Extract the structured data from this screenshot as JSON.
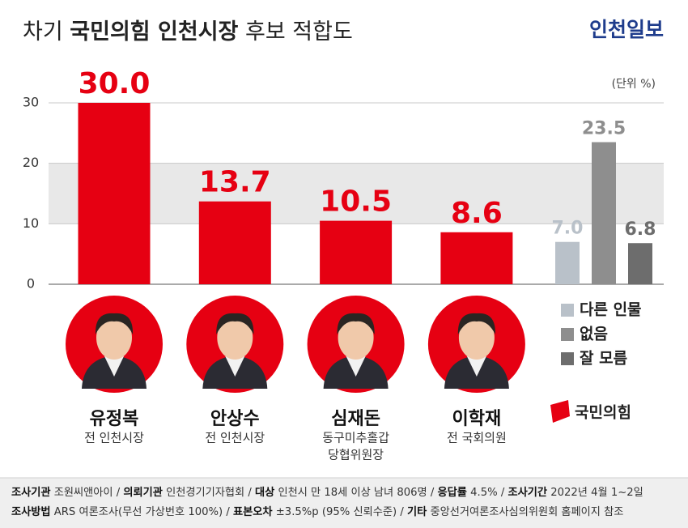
{
  "chart_data": {
    "type": "bar",
    "title": [
      "차기",
      "국민의힘 인천시장",
      "후보 적합도"
    ],
    "logo": "인천일보",
    "unit": "(단위 %)",
    "categories": [
      "유정복",
      "안상수",
      "심재돈",
      "이학재",
      "다른 인물",
      "없음",
      "잘 모름"
    ],
    "values": [
      30.0,
      13.7,
      10.5,
      8.6,
      7.0,
      23.5,
      6.8
    ],
    "value_labels": [
      "30.0",
      "13.7",
      "10.5",
      "8.6",
      "7.0",
      "23.5",
      "6.8"
    ],
    "colors": [
      "#e60012",
      "#e60012",
      "#e60012",
      "#e60012",
      "#b9c1c9",
      "#8e8e8e",
      "#6d6d6d"
    ],
    "descriptions": [
      [
        "전 인천시장"
      ],
      [
        "전 인천시장"
      ],
      [
        "동구미추홀갑",
        "당협위원장"
      ],
      [
        "전 국회의원"
      ]
    ],
    "party": "국민의힘",
    "ylim": [
      0,
      30
    ],
    "yticks": [
      0,
      10,
      20,
      30
    ],
    "grid": true,
    "notes": [
      [
        {
          "label": "조사기관",
          "text": "조원씨앤아이"
        },
        {
          "label": "의뢰기관",
          "text": "인천경기기자협회"
        },
        {
          "label": "대상",
          "text": "인천시 만 18세 이상 남녀 806명"
        },
        {
          "label": "응답률",
          "text": "4.5%"
        },
        {
          "label": "조사기간",
          "text": "2022년 4월 1~2일"
        }
      ],
      [
        {
          "label": "조사방법",
          "text": "ARS 여론조사(무선 가상번호 100%)"
        },
        {
          "label": "표본오차",
          "text": "±3.5%p (95% 신뢰수준)"
        },
        {
          "label": "기타",
          "text": "중앙선거여론조사심의위원회 홈페이지 참조"
        }
      ]
    ]
  }
}
